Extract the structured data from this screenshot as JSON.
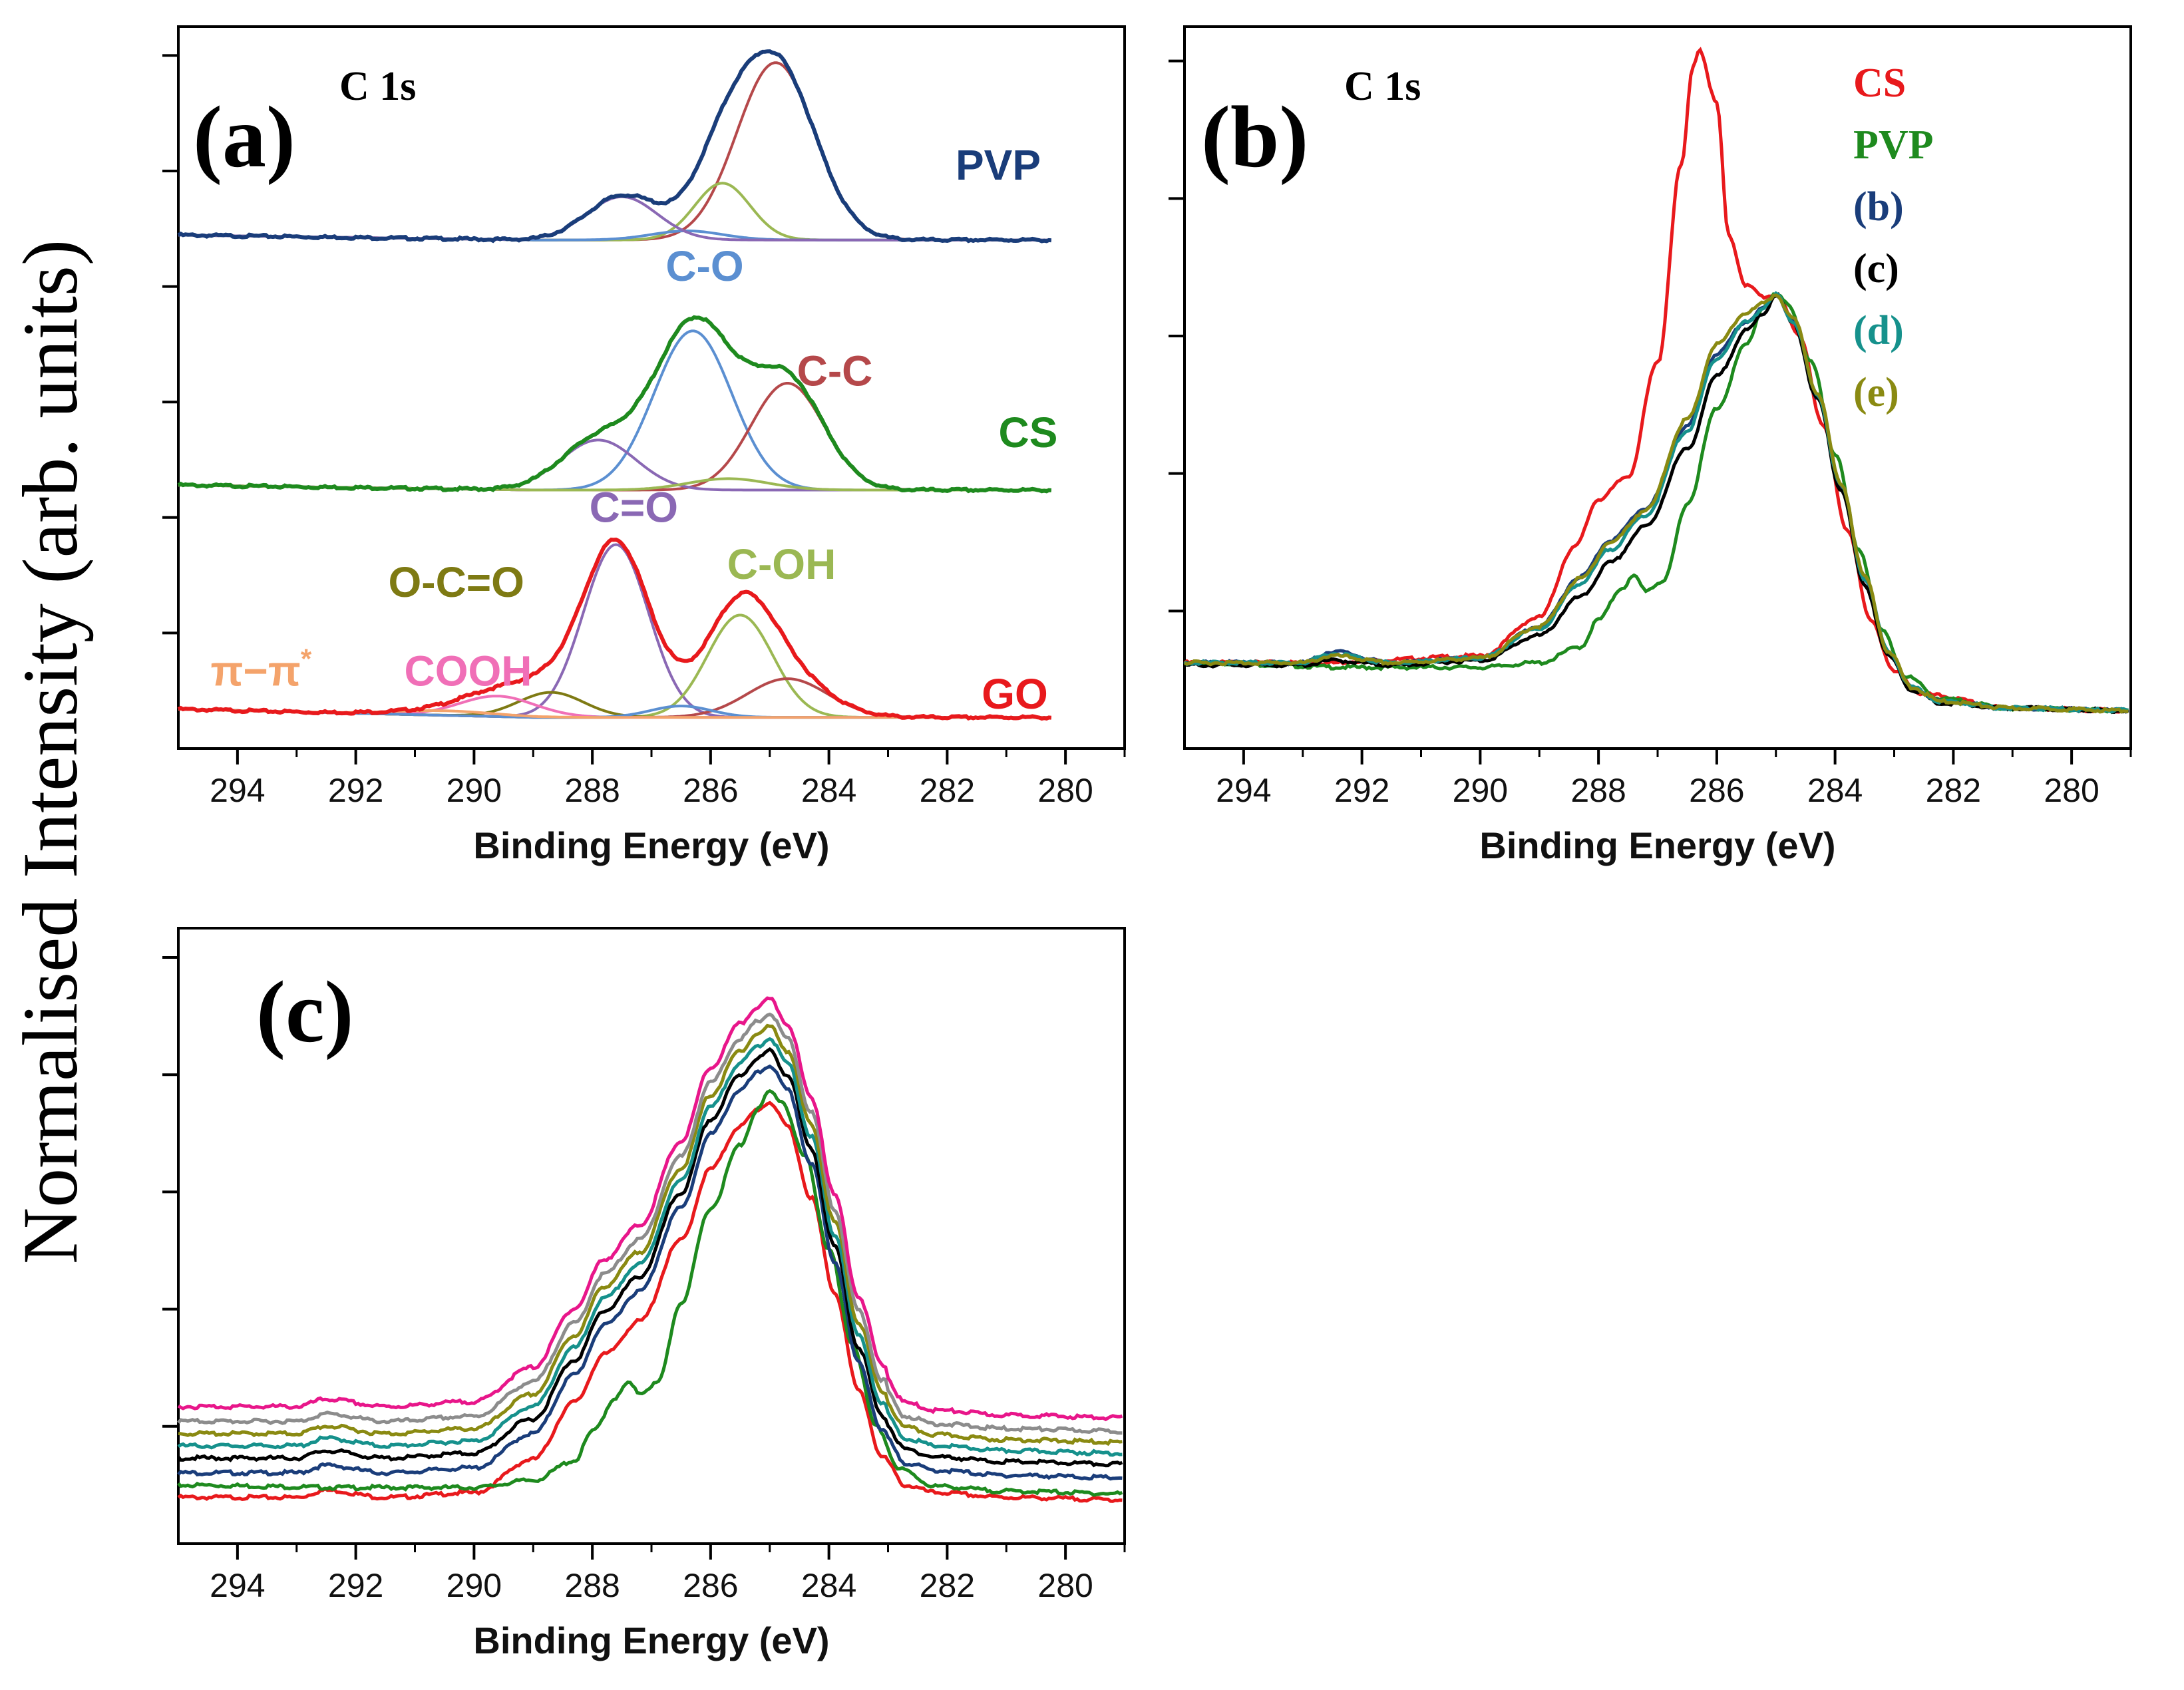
{
  "figure": {
    "ylabel": "Normalised Intensity (arb. units)"
  },
  "chart_data": [
    {
      "id": "a",
      "type": "line",
      "panel_label": "(a)",
      "inset_title": "C 1s",
      "xlabel": "Binding Energy (eV)",
      "ylabel": "Normalised Intensity (arb. units)",
      "xlim": [
        295,
        279
      ],
      "ylim": [
        0,
        3
      ],
      "x_ticks": [
        294,
        292,
        290,
        288,
        286,
        284,
        282,
        280
      ],
      "stacks": [
        {
          "name": "PVP",
          "label": "PVP",
          "label_color": "#1a3d7a",
          "offset": 2.1,
          "total_color": "#1a3d7a",
          "peaks": [
            {
              "component": "C-C",
              "center": 284.9,
              "height": 0.78,
              "fwhm": 1.55,
              "color": "#b5484a"
            },
            {
              "component": "C-OH",
              "center": 285.8,
              "height": 0.25,
              "fwhm": 1.1,
              "color": "#9bb853"
            },
            {
              "component": "C-O",
              "center": 286.4,
              "height": 0.04,
              "fwhm": 1.4,
              "color": "#5b8fd1"
            },
            {
              "component": "C=O",
              "center": 287.5,
              "height": 0.19,
              "fwhm": 1.4,
              "color": "#8a68b4"
            }
          ]
        },
        {
          "name": "CS",
          "label": "CS",
          "label_color": "#1e8a1e",
          "offset": 1.0,
          "total_color": "#1e8a1e",
          "peaks": [
            {
              "component": "C-O",
              "center": 286.3,
              "height": 0.7,
              "fwhm": 1.55,
              "color": "#5b8fd1"
            },
            {
              "component": "C-C",
              "center": 284.7,
              "height": 0.47,
              "fwhm": 1.45,
              "color": "#b5484a"
            },
            {
              "component": "C=O",
              "center": 287.9,
              "height": 0.22,
              "fwhm": 1.5,
              "color": "#8a68b4"
            },
            {
              "component": "C-OH",
              "center": 285.7,
              "height": 0.05,
              "fwhm": 1.6,
              "color": "#9bb853"
            }
          ]
        },
        {
          "name": "GO",
          "label": "GO",
          "label_color": "#e8191c",
          "offset": 0,
          "total_color": "#e8191c",
          "peaks": [
            {
              "component": "C=O",
              "center": 287.6,
              "height": 0.76,
              "fwhm": 1.3,
              "color": "#8a68b4"
            },
            {
              "component": "C-OH",
              "center": 285.5,
              "height": 0.45,
              "fwhm": 1.3,
              "color": "#9bb853"
            },
            {
              "component": "C-C",
              "center": 284.7,
              "height": 0.17,
              "fwhm": 1.6,
              "color": "#b5484a"
            },
            {
              "component": "O-C=O",
              "center": 288.7,
              "height": 0.11,
              "fwhm": 1.3,
              "color": "#7e7a13"
            },
            {
              "component": "COOH",
              "center": 289.6,
              "height": 0.09,
              "fwhm": 1.5,
              "color": "#f06fb7"
            },
            {
              "component": "C-O",
              "center": 286.5,
              "height": 0.05,
              "fwhm": 1.2,
              "color": "#5b8fd1"
            },
            {
              "component": "π–π*",
              "center": 290.5,
              "height": 0.02,
              "fwhm": 2.0,
              "color": "#f4a36b"
            }
          ]
        }
      ],
      "annotations": [
        {
          "text": "C-O",
          "color": "#5b8fd1",
          "at": [
            286.1,
            1.94
          ]
        },
        {
          "text": "C-C",
          "color": "#b5484a",
          "at": [
            283.9,
            1.48
          ]
        },
        {
          "text": "C=O",
          "color": "#8a68b4",
          "at": [
            287.3,
            0.88
          ]
        },
        {
          "text": "C-OH",
          "color": "#9bb853",
          "at": [
            284.8,
            0.63
          ]
        },
        {
          "text": "O-C=O",
          "color": "#7e7a13",
          "at": [
            290.3,
            0.55
          ]
        },
        {
          "text": "COOH",
          "color": "#f06fb7",
          "at": [
            290.1,
            0.16
          ]
        },
        {
          "text": "π−π",
          "sup": "*",
          "color": "#f4a36b",
          "at": [
            293.6,
            0.16
          ]
        }
      ]
    },
    {
      "id": "b",
      "type": "line",
      "panel_label": "(b)",
      "inset_title": "C 1s",
      "xlabel": "Binding Energy (eV)",
      "xlim": [
        295,
        279
      ],
      "ylim": [
        0,
        3
      ],
      "x_ticks": [
        294,
        292,
        290,
        288,
        286,
        284,
        282,
        280
      ],
      "series": [
        {
          "name": "CS",
          "color": "#e8191c",
          "x": [
            295,
            292.5,
            292,
            290,
            289,
            288.4,
            288,
            287.5,
            287,
            286.6,
            286.4,
            286.3,
            286.0,
            285.8,
            285.5,
            285.2,
            285.0,
            284.6,
            284.2,
            283.8,
            283.4,
            283.0,
            282.5,
            281,
            279
          ],
          "y": [
            0.26,
            0.26,
            0.27,
            0.29,
            0.46,
            0.77,
            0.98,
            1.08,
            1.58,
            2.45,
            2.88,
            2.96,
            2.72,
            2.14,
            1.92,
            1.87,
            1.88,
            1.7,
            1.3,
            0.85,
            0.45,
            0.22,
            0.12,
            0.06,
            0.05
          ]
        },
        {
          "name": "PVP",
          "color": "#1e8a1e",
          "x": [
            295,
            292,
            290,
            289,
            288.3,
            288,
            287.6,
            287.4,
            287.2,
            286.9,
            286.5,
            286.0,
            285.5,
            285.2,
            285.0,
            284.8,
            284.4,
            284.0,
            283.6,
            283.2,
            282.8,
            282.2,
            281,
            279
          ],
          "y": [
            0.26,
            0.24,
            0.24,
            0.26,
            0.33,
            0.45,
            0.59,
            0.64,
            0.58,
            0.62,
            0.96,
            1.38,
            1.66,
            1.83,
            1.88,
            1.84,
            1.58,
            1.18,
            0.76,
            0.4,
            0.2,
            0.1,
            0.06,
            0.05
          ]
        },
        {
          "name": "(b)",
          "color": "#1a3d7a",
          "x": [
            295,
            293,
            292.5,
            291.5,
            290,
            289,
            288.3,
            287.8,
            287.2,
            286.5,
            286.0,
            285.5,
            285.2,
            285.0,
            284.7,
            284.3,
            283.9,
            283.5,
            283.1,
            282.7,
            282.2,
            281,
            279
          ],
          "y": [
            0.26,
            0.26,
            0.31,
            0.26,
            0.28,
            0.42,
            0.64,
            0.8,
            0.94,
            1.3,
            1.62,
            1.76,
            1.82,
            1.88,
            1.76,
            1.43,
            1.03,
            0.62,
            0.3,
            0.15,
            0.09,
            0.06,
            0.05
          ]
        },
        {
          "name": "(c)",
          "color": "#000000",
          "x": [
            295,
            293,
            292.5,
            291.5,
            290,
            289,
            288.3,
            287.8,
            287.2,
            286.5,
            286.0,
            285.5,
            285.2,
            285.0,
            284.7,
            284.3,
            283.9,
            283.5,
            283.1,
            282.7,
            282.2,
            281,
            279
          ],
          "y": [
            0.25,
            0.25,
            0.27,
            0.25,
            0.27,
            0.38,
            0.55,
            0.7,
            0.86,
            1.2,
            1.52,
            1.72,
            1.8,
            1.88,
            1.75,
            1.42,
            1.02,
            0.6,
            0.29,
            0.14,
            0.08,
            0.06,
            0.05
          ]
        },
        {
          "name": "(d)",
          "color": "#16918c",
          "x": [
            295,
            293,
            292.5,
            291.5,
            290,
            289,
            288.3,
            287.8,
            287.2,
            286.5,
            286.0,
            285.5,
            285.2,
            285.0,
            284.7,
            284.3,
            283.9,
            283.5,
            283.1,
            282.7,
            282.2,
            281,
            279
          ],
          "y": [
            0.26,
            0.26,
            0.3,
            0.26,
            0.28,
            0.41,
            0.61,
            0.76,
            0.91,
            1.28,
            1.6,
            1.76,
            1.82,
            1.88,
            1.76,
            1.44,
            1.04,
            0.63,
            0.31,
            0.15,
            0.09,
            0.06,
            0.05
          ]
        },
        {
          "name": "(e)",
          "color": "#8a8a12",
          "x": [
            295,
            293,
            292.5,
            291.5,
            290,
            289,
            288.3,
            287.8,
            287.2,
            286.5,
            286.0,
            285.5,
            285.2,
            285.0,
            284.7,
            284.3,
            283.9,
            283.5,
            283.1,
            282.7,
            282.2,
            281,
            279
          ],
          "y": [
            0.26,
            0.26,
            0.29,
            0.26,
            0.28,
            0.42,
            0.63,
            0.79,
            0.93,
            1.33,
            1.66,
            1.8,
            1.84,
            1.88,
            1.77,
            1.45,
            1.05,
            0.64,
            0.31,
            0.15,
            0.09,
            0.06,
            0.05
          ]
        }
      ],
      "legend": [
        {
          "text": "CS",
          "color": "#e8191c"
        },
        {
          "text": "PVP",
          "color": "#1e8a1e"
        },
        {
          "text": "(b)",
          "color": "#1a3d7a"
        },
        {
          "text": "(c)",
          "color": "#000000"
        },
        {
          "text": "(d)",
          "color": "#16918c"
        },
        {
          "text": "(e)",
          "color": "#8a8a12"
        }
      ]
    },
    {
      "id": "c",
      "type": "line",
      "panel_label": "(c)",
      "xlabel": "Binding Energy (eV)",
      "xlim": [
        295,
        279
      ],
      "ylim": [
        0,
        3
      ],
      "x_ticks": [
        294,
        292,
        290,
        288,
        286,
        284,
        282,
        280
      ],
      "base_shape": {
        "x": [
          295,
          293,
          292.5,
          291.5,
          290,
          289,
          288.3,
          287.8,
          287.2,
          286.5,
          286.0,
          285.5,
          285.2,
          285.0,
          284.7,
          284.3,
          283.9,
          283.5,
          283.1,
          282.7,
          282.2,
          281,
          279
        ],
        "y": [
          0.0,
          0.0,
          0.03,
          0.0,
          0.02,
          0.16,
          0.4,
          0.6,
          0.74,
          1.08,
          1.38,
          1.56,
          1.63,
          1.66,
          1.56,
          1.26,
          0.86,
          0.45,
          0.17,
          0.05,
          0.02,
          0.0,
          -0.01
        ]
      },
      "series": [
        {
          "name": "red",
          "color": "#e8191c",
          "offset": 0.08,
          "scale": 0.97
        },
        {
          "name": "green",
          "color": "#1e8a1e",
          "offset": 0.13,
          "scale": 0.99,
          "variant": "pvp"
        },
        {
          "name": "blue",
          "color": "#1a3d7a",
          "offset": 0.18,
          "scale": 1.0
        },
        {
          "name": "black",
          "color": "#000000",
          "offset": 0.24,
          "scale": 1.0
        },
        {
          "name": "teal",
          "color": "#16918c",
          "offset": 0.29,
          "scale": 1.0
        },
        {
          "name": "olive",
          "color": "#8a8a12",
          "offset": 0.34,
          "scale": 1.0
        },
        {
          "name": "gray",
          "color": "#8c8c8c",
          "offset": 0.39,
          "scale": 1.0
        },
        {
          "name": "magenta",
          "color": "#e8168a",
          "offset": 0.45,
          "scale": 1.0
        }
      ]
    }
  ]
}
